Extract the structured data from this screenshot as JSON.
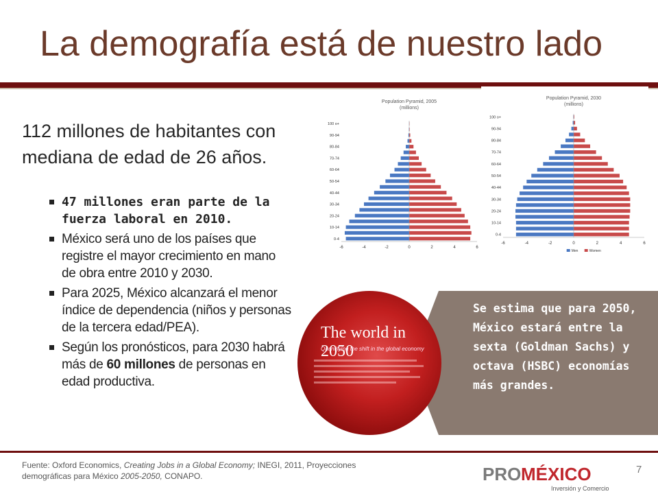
{
  "slide": {
    "title": "La demografía está de nuestro lado",
    "intro": "112 millones de habitantes con mediana de edad de 26 años.",
    "bullets": [
      {
        "text": "47 millones eran parte de la fuerza laboral en 2010.",
        "bold": true
      },
      {
        "text": "México será uno de los países que registre el mayor crecimiento en mano de obra entre 2010 y 2030."
      },
      {
        "text": "Para 2025, México alcanzará el menor índice de dependencia (niños y personas de la tercera edad/PEA)."
      },
      {
        "pre": "Según los pronósticos, para 2030 habrá más de ",
        "strong": "60 millones",
        "post": " de personas en edad productiva."
      }
    ],
    "callout": "Se estima que para 2050, México estará entre la sexta (Goldman Sachs) y octava (HSBC) economías más grandes.",
    "cover_title": "The world in 2050",
    "cover_subtitle": "Quantifying the shift in the global economy",
    "source_pre": "Fuente: Oxford Economics, ",
    "source_italic1": "Creating Jobs  in a Global Economy;",
    "source_mid": " INEGI,  2011, Proyecciones demográficas para México ",
    "source_italic2": "2005-2050,",
    "source_post": "  CONAPO.",
    "page_number": "7",
    "logo": {
      "pro": "PRO",
      "mexico": "MÉXICO",
      "tagline": "Inversión y Comercio"
    }
  },
  "colors": {
    "men": "#4a78c2",
    "women": "#c84a4a",
    "title": "#6b3a2a",
    "rule": "#6e0f0f",
    "callout_bg": "#8a7a70"
  },
  "chart_data": [
    {
      "type": "bar",
      "title": "Population Pyramid, 2005 (millions)",
      "categories": [
        "0-4",
        "5-9",
        "10-14",
        "15-19",
        "20-24",
        "25-29",
        "30-34",
        "35-39",
        "40-44",
        "45-49",
        "50-54",
        "55-59",
        "60-64",
        "65-69",
        "70-74",
        "75-79",
        "80-84",
        "85-89",
        "90-94",
        "95-99",
        "100 +"
      ],
      "category_labels": [
        "0-4",
        "10-14",
        "20-24",
        "30-34",
        "40-44",
        "50-54",
        "60-64",
        "70-74",
        "80-84",
        "90-94",
        "100 o+"
      ],
      "series": [
        {
          "name": "Men",
          "values": [
            -5.6,
            -5.7,
            -5.6,
            -5.3,
            -4.8,
            -4.4,
            -4.0,
            -3.6,
            -3.1,
            -2.6,
            -2.1,
            -1.7,
            -1.3,
            -1.0,
            -0.75,
            -0.5,
            -0.3,
            -0.15,
            -0.07,
            -0.03,
            -0.01
          ]
        },
        {
          "name": "Women",
          "values": [
            5.4,
            5.5,
            5.4,
            5.2,
            4.9,
            4.6,
            4.2,
            3.8,
            3.3,
            2.8,
            2.3,
            1.9,
            1.5,
            1.1,
            0.85,
            0.6,
            0.38,
            0.2,
            0.09,
            0.04,
            0.01
          ]
        }
      ],
      "xticks": [
        "-6",
        "-4",
        "-2",
        "0",
        "2",
        "4",
        "6"
      ],
      "xlim": [
        -6,
        6
      ]
    },
    {
      "type": "bar",
      "title": "Population Pyramid, 2030 (millions)",
      "categories": [
        "0-4",
        "5-9",
        "10-14",
        "15-19",
        "20-24",
        "25-29",
        "30-34",
        "35-39",
        "40-44",
        "45-49",
        "50-54",
        "55-59",
        "60-64",
        "65-69",
        "70-74",
        "75-79",
        "80-84",
        "85-89",
        "90-94",
        "95-99",
        "100 o+"
      ],
      "category_labels": [
        "0-4",
        "10-14",
        "20-24",
        "30-34",
        "40-44",
        "50-54",
        "60-64",
        "70-74",
        "80-84",
        "90-94",
        "100 o+"
      ],
      "series": [
        {
          "name": "Men",
          "values": [
            -4.9,
            -4.9,
            -4.9,
            -4.95,
            -4.95,
            -4.9,
            -4.8,
            -4.6,
            -4.3,
            -4.0,
            -3.6,
            -3.1,
            -2.6,
            -2.1,
            -1.6,
            -1.1,
            -0.7,
            -0.4,
            -0.2,
            -0.08,
            -0.03
          ]
        },
        {
          "name": "Women",
          "values": [
            4.7,
            4.7,
            4.7,
            4.75,
            4.8,
            4.8,
            4.8,
            4.7,
            4.5,
            4.2,
            3.9,
            3.4,
            2.9,
            2.4,
            1.9,
            1.4,
            0.95,
            0.55,
            0.28,
            0.12,
            0.05
          ]
        }
      ],
      "xticks": [
        "-6",
        "-4",
        "-2",
        "0",
        "2",
        "4",
        "6"
      ],
      "xlim": [
        -6,
        6
      ],
      "legend": [
        "Men",
        "Women"
      ]
    }
  ]
}
